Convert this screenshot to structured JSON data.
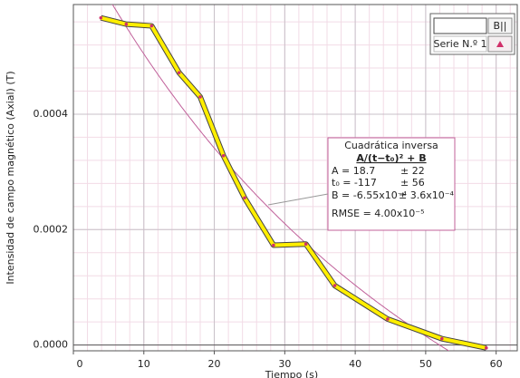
{
  "chart_data": {
    "type": "line",
    "x_label": "Tiempo (s)",
    "y_label": "Intensidad de campo magnético (Axial) (T)",
    "series": [
      {
        "name": "Serie N.º 1",
        "color": "#ffee00",
        "x": [
          3.9,
          7.5,
          11.1,
          15.0,
          18.0,
          21.3,
          24.3,
          28.4,
          33.0,
          37.1,
          44.6,
          52.3,
          58.6
        ],
        "values": [
          0.000567,
          0.000556,
          0.000553,
          0.000472,
          0.00043,
          0.000328,
          0.000255,
          0.000173,
          0.000175,
          0.000103,
          4.5e-05,
          1.1e-05,
          -5e-06
        ]
      }
    ],
    "xlim": [
      0,
      63
    ],
    "xticks": [
      0,
      10,
      20,
      30,
      40,
      50,
      60
    ],
    "ylim": [
      -1e-05,
      0.00059
    ],
    "yticks": [
      {
        "value": 0,
        "label": "0.0000"
      },
      {
        "value": 0.0002,
        "label": "0.0002"
      },
      {
        "value": 0.0004,
        "label": "0.0004"
      }
    ],
    "grid": true,
    "legend_button": "B||",
    "fit": {
      "title": "Cuadrática inversa",
      "equation": "A/(t−t₀)² + B",
      "color": "#c0609a",
      "params": [
        {
          "value": 18.7,
          "label": "A = 18.7",
          "error": "± 22"
        },
        {
          "value": -117,
          "label": "t₀ = -117",
          "error": "± 56"
        },
        {
          "value": -0.000655,
          "label": "B = -6.55x10⁻⁴",
          "error": "± 3.6x10⁻⁴"
        }
      ],
      "rmse": {
        "value": 4e-05,
        "label": "RMSE = 4.00x10⁻⁵"
      }
    }
  }
}
